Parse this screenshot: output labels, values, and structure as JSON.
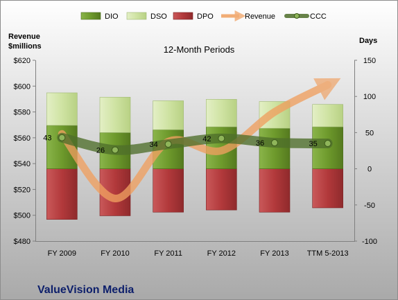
{
  "chart_data": {
    "type": "bar",
    "title": "12-Month Periods",
    "company": "ValueVision Media",
    "left_axis_label": [
      "Revenue",
      "$millions"
    ],
    "right_axis_label": "Days",
    "categories": [
      "FY 2009",
      "FY 2010",
      "FY 2011",
      "FY 2012",
      "FY 2013",
      "TTM 5-2013"
    ],
    "left_ylim": [
      480,
      620
    ],
    "left_ticks": [
      "$480",
      "$500",
      "$520",
      "$540",
      "$560",
      "$580",
      "$600",
      "$620"
    ],
    "right_ylim": [
      -100,
      150
    ],
    "right_ticks": [
      "-100",
      "-50",
      "0",
      "50",
      "100",
      "150"
    ],
    "legend": [
      "DIO",
      "DSO",
      "DPO",
      "Revenue",
      "CCC"
    ],
    "legend_position": "top",
    "series": [
      {
        "name": "DIO",
        "axis": "right",
        "stacked": true,
        "values": [
          60,
          50,
          54,
          58,
          56,
          58
        ],
        "color": "#6e9a2c"
      },
      {
        "name": "DSO",
        "axis": "right",
        "stacked": true,
        "values": [
          45,
          49,
          40,
          38,
          37,
          31
        ],
        "color": "#cfe3a3"
      },
      {
        "name": "DPO",
        "axis": "right",
        "stacked": true,
        "values": [
          -70,
          -65,
          -60,
          -57,
          -60,
          -54
        ],
        "color": "#b2393b"
      },
      {
        "name": "Revenue",
        "axis": "left",
        "type": "line",
        "values": [
          563,
          513,
          557,
          550,
          580,
          601
        ],
        "color": "#f0a060"
      },
      {
        "name": "CCC",
        "axis": "right",
        "type": "line",
        "values": [
          43,
          26,
          34,
          42,
          36,
          35
        ],
        "labels": [
          "43",
          "26",
          "34",
          "42",
          "36",
          "35"
        ],
        "color": "#4e6e2a"
      }
    ]
  }
}
